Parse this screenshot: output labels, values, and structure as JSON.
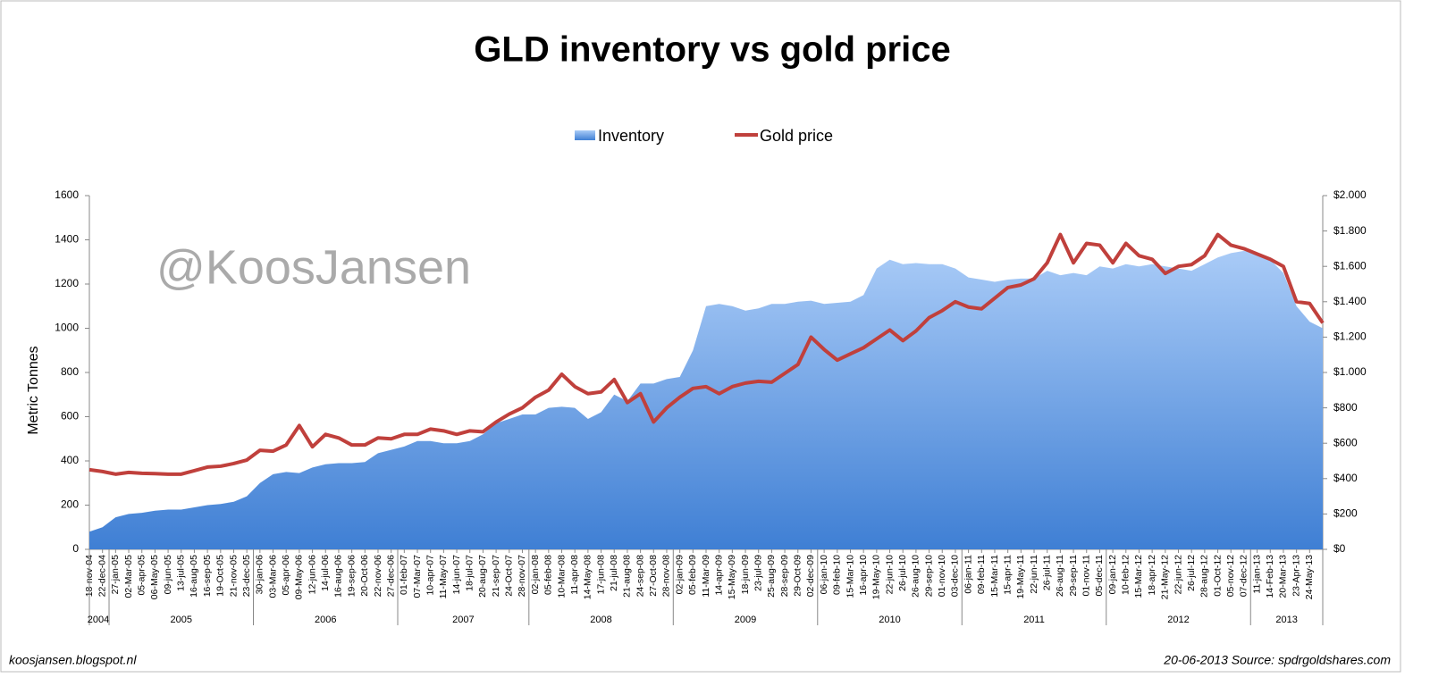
{
  "chart_data": {
    "type": "area-line",
    "title": "GLD  inventory vs gold price",
    "watermark": "@KoosJansen",
    "ylabel": "Metric Tonnes",
    "footer_left": "koosjansen.blogspot.nl",
    "footer_right": "20-06-2013 Source: spdrgoldshares.com",
    "categories": [
      "18-nov-04",
      "22-dec-04",
      "27-jan-05",
      "02-Mar-05",
      "05-apr-05",
      "06-May-05",
      "09-jun-05",
      "13-jul-05",
      "16-aug-05",
      "16-sep-05",
      "19-Oct-05",
      "21-nov-05",
      "23-dec-05",
      "30-jan-06",
      "03-Mar-06",
      "05-apr-06",
      "09-May-06",
      "12-jun-06",
      "14-jul-06",
      "16-aug-06",
      "19-sep-06",
      "20-Oct-06",
      "22-nov-06",
      "27-dec-06",
      "01-feb-07",
      "07-Mar-07",
      "10-apr-07",
      "11-May-07",
      "14-jun-07",
      "18-jul-07",
      "20-aug-07",
      "21-sep-07",
      "24-Oct-07",
      "28-nov-07",
      "02-jan-08",
      "05-feb-08",
      "10-Mar-08",
      "11-apr-08",
      "14-May-08",
      "17-jun-08",
      "21-jul-08",
      "21-aug-08",
      "24-sep-08",
      "27-Oct-08",
      "28-nov-08",
      "02-jan-09",
      "05-feb-09",
      "11-Mar-09",
      "14-apr-09",
      "15-May-09",
      "18-jun-09",
      "23-jul-09",
      "25-aug-09",
      "28-sep-09",
      "29-Oct-09",
      "02-dec-09",
      "06-jan-10",
      "09-feb-10",
      "15-Mar-10",
      "16-apr-10",
      "19-May-10",
      "22-jun-10",
      "26-jul-10",
      "26-aug-10",
      "29-sep-10",
      "01-nov-10",
      "03-dec-10",
      "06-jan-11",
      "09-feb-11",
      "15-Mar-11",
      "15-apr-11",
      "19-May-11",
      "22-jun-11",
      "26-jul-11",
      "26-aug-11",
      "29-sep-11",
      "01-nov-11",
      "05-dec-11",
      "09-jan-12",
      "10-feb-12",
      "15-Mar-12",
      "18-apr-12",
      "21-May-12",
      "22-jun-12",
      "26-jul-12",
      "28-aug-12",
      "01-Oct-12",
      "05-nov-12",
      "07-dec-12",
      "11-jan-13",
      "14-Feb-13",
      "20-Mar-13",
      "23-Apr-13",
      "24-May-13",
      null
    ],
    "year_labels": [
      "2004",
      "2005",
      "2006",
      "2007",
      "2008",
      "2009",
      "2010",
      "2011",
      "2012",
      "2013"
    ],
    "series": [
      {
        "name": "Inventory",
        "type": "area",
        "color": "#3f7fd4",
        "values": [
          80,
          100,
          145,
          160,
          165,
          175,
          180,
          180,
          190,
          200,
          205,
          215,
          240,
          300,
          340,
          350,
          345,
          370,
          385,
          390,
          390,
          395,
          435,
          450,
          465,
          490,
          490,
          480,
          480,
          490,
          520,
          570,
          590,
          610,
          610,
          640,
          645,
          640,
          590,
          620,
          700,
          670,
          750,
          750,
          770,
          780,
          900,
          1100,
          1110,
          1100,
          1080,
          1090,
          1110,
          1110,
          1120,
          1125,
          1110,
          1115,
          1120,
          1150,
          1270,
          1310,
          1290,
          1295,
          1290,
          1290,
          1270,
          1230,
          1220,
          1210,
          1220,
          1225,
          1225,
          1260,
          1240,
          1250,
          1240,
          1280,
          1270,
          1290,
          1280,
          1290,
          1280,
          1270,
          1260,
          1290,
          1320,
          1340,
          1350,
          1340,
          1310,
          1250,
          1100,
          1030,
          1000
        ]
      },
      {
        "name": "Gold price",
        "type": "line",
        "axis": "y2",
        "color": "#c0403c",
        "values": [
          450,
          440,
          425,
          435,
          430,
          428,
          425,
          425,
          445,
          465,
          470,
          485,
          505,
          560,
          555,
          590,
          700,
          580,
          650,
          630,
          590,
          590,
          630,
          625,
          650,
          650,
          680,
          670,
          650,
          670,
          665,
          720,
          765,
          800,
          860,
          900,
          990,
          920,
          880,
          890,
          960,
          830,
          880,
          720,
          800,
          860,
          910,
          920,
          880,
          920,
          940,
          950,
          945,
          995,
          1045,
          1200,
          1130,
          1070,
          1105,
          1140,
          1190,
          1240,
          1180,
          1235,
          1310,
          1350,
          1400,
          1370,
          1360,
          1420,
          1480,
          1495,
          1530,
          1620,
          1780,
          1620,
          1730,
          1720,
          1620,
          1730,
          1660,
          1640,
          1560,
          1600,
          1610,
          1660,
          1780,
          1720,
          1700,
          1670,
          1640,
          1600,
          1400,
          1390,
          1280
        ]
      }
    ],
    "ylim": [
      0,
      1600
    ],
    "yticks": [
      0,
      200,
      400,
      600,
      800,
      1000,
      1200,
      1400,
      1600
    ],
    "y2lim": [
      0,
      2000
    ],
    "y2ticks": [
      {
        "value": 0,
        "label": "$0"
      },
      {
        "value": 200,
        "label": "$200"
      },
      {
        "value": 400,
        "label": "$400"
      },
      {
        "value": 600,
        "label": "$600"
      },
      {
        "value": 800,
        "label": "$800"
      },
      {
        "value": 1000,
        "label": "$1.000"
      },
      {
        "value": 1200,
        "label": "$1.200"
      },
      {
        "value": 1400,
        "label": "$1.400"
      },
      {
        "value": 1600,
        "label": "$1.600"
      },
      {
        "value": 1800,
        "label": "$1.800"
      },
      {
        "value": 2000,
        "label": "$2.000"
      }
    ],
    "legend": "top",
    "grid": false
  }
}
